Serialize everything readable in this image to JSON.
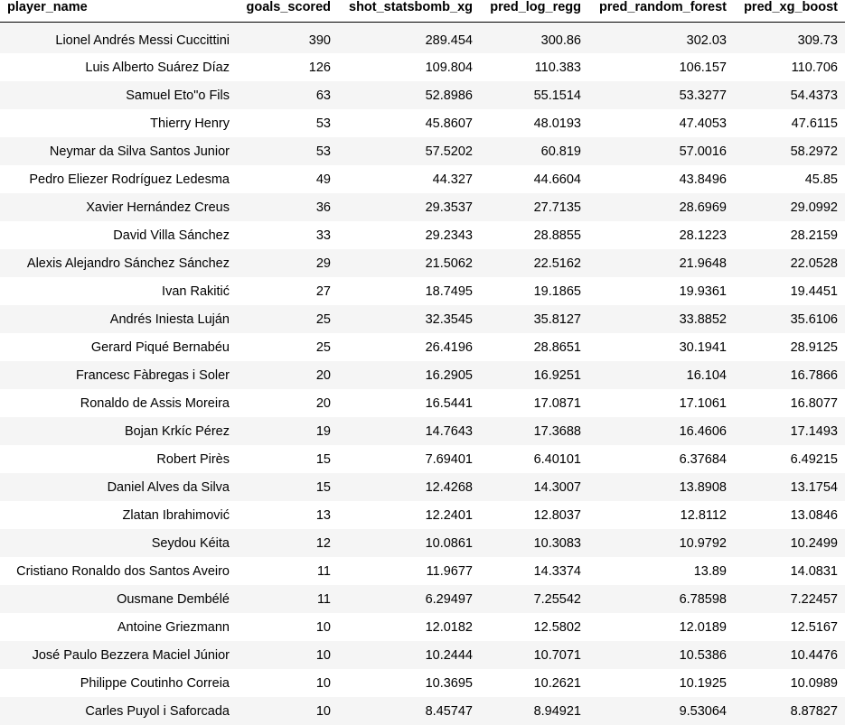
{
  "columns": [
    "player_name",
    "goals_scored",
    "shot_statsbomb_xg",
    "pred_log_regg",
    "pred_random_forest",
    "pred_xg_boost"
  ],
  "rows": [
    [
      "Lionel Andrés Messi Cuccittini",
      "390",
      "289.454",
      "300.86",
      "302.03",
      "309.73"
    ],
    [
      "Luis Alberto Suárez Díaz",
      "126",
      "109.804",
      "110.383",
      "106.157",
      "110.706"
    ],
    [
      "Samuel Eto\"o Fils",
      "63",
      "52.8986",
      "55.1514",
      "53.3277",
      "54.4373"
    ],
    [
      "Thierry Henry",
      "53",
      "45.8607",
      "48.0193",
      "47.4053",
      "47.6115"
    ],
    [
      "Neymar da Silva Santos Junior",
      "53",
      "57.5202",
      "60.819",
      "57.0016",
      "58.2972"
    ],
    [
      "Pedro Eliezer Rodríguez Ledesma",
      "49",
      "44.327",
      "44.6604",
      "43.8496",
      "45.85"
    ],
    [
      "Xavier Hernández Creus",
      "36",
      "29.3537",
      "27.7135",
      "28.6969",
      "29.0992"
    ],
    [
      "David Villa Sánchez",
      "33",
      "29.2343",
      "28.8855",
      "28.1223",
      "28.2159"
    ],
    [
      "Alexis Alejandro Sánchez Sánchez",
      "29",
      "21.5062",
      "22.5162",
      "21.9648",
      "22.0528"
    ],
    [
      "Ivan Rakitić",
      "27",
      "18.7495",
      "19.1865",
      "19.9361",
      "19.4451"
    ],
    [
      "Andrés Iniesta Luján",
      "25",
      "32.3545",
      "35.8127",
      "33.8852",
      "35.6106"
    ],
    [
      "Gerard Piqué Bernabéu",
      "25",
      "26.4196",
      "28.8651",
      "30.1941",
      "28.9125"
    ],
    [
      "Francesc Fàbregas i Soler",
      "20",
      "16.2905",
      "16.9251",
      "16.104",
      "16.7866"
    ],
    [
      "Ronaldo de Assis Moreira",
      "20",
      "16.5441",
      "17.0871",
      "17.1061",
      "16.8077"
    ],
    [
      "Bojan Krkíc Pérez",
      "19",
      "14.7643",
      "17.3688",
      "16.4606",
      "17.1493"
    ],
    [
      "Robert Pirès",
      "15",
      "7.69401",
      "6.40101",
      "6.37684",
      "6.49215"
    ],
    [
      "Daniel Alves da Silva",
      "15",
      "12.4268",
      "14.3007",
      "13.8908",
      "13.1754"
    ],
    [
      "Zlatan Ibrahimović",
      "13",
      "12.2401",
      "12.8037",
      "12.8112",
      "13.0846"
    ],
    [
      "Seydou Kéita",
      "12",
      "10.0861",
      "10.3083",
      "10.9792",
      "10.2499"
    ],
    [
      "Cristiano Ronaldo dos Santos Aveiro",
      "11",
      "11.9677",
      "14.3374",
      "13.89",
      "14.0831"
    ],
    [
      "Ousmane Dembélé",
      "11",
      "6.29497",
      "7.25542",
      "6.78598",
      "7.22457"
    ],
    [
      "Antoine Griezmann",
      "10",
      "12.0182",
      "12.5802",
      "12.0189",
      "12.5167"
    ],
    [
      "José Paulo Bezzera Maciel Júnior",
      "10",
      "10.2444",
      "10.7071",
      "10.5386",
      "10.4476"
    ],
    [
      "Philippe Coutinho Correia",
      "10",
      "10.3695",
      "10.2621",
      "10.1925",
      "10.0989"
    ],
    [
      "Carles Puyol i Saforcada",
      "10",
      "8.45747",
      "8.94921",
      "9.53064",
      "8.87827"
    ]
  ]
}
